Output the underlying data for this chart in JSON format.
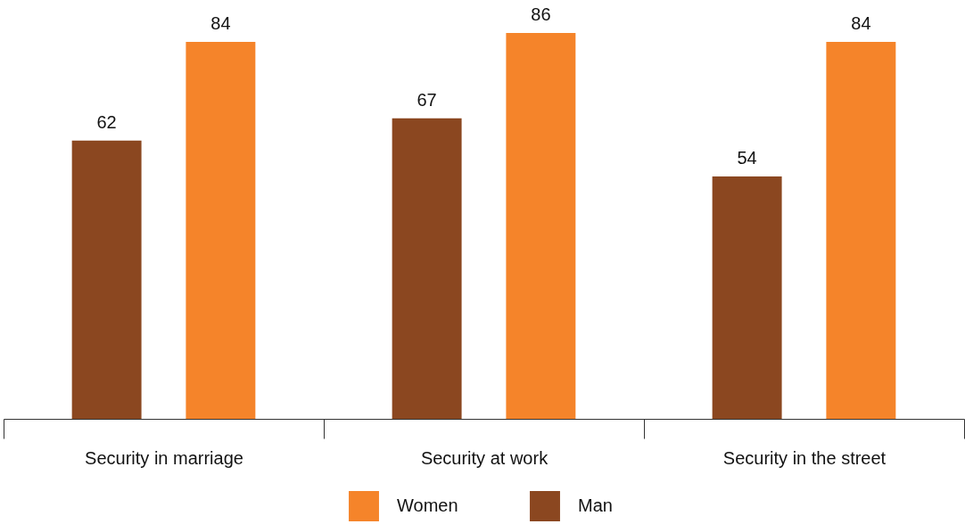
{
  "chart_data": {
    "type": "bar",
    "categories": [
      "Security in marriage",
      "Security at work",
      "Security in the street"
    ],
    "series": [
      {
        "name": "Man",
        "color": "#8b4720",
        "values": [
          62,
          67,
          54
        ]
      },
      {
        "name": "Women",
        "color": "#f5842a",
        "values": [
          84,
          86,
          84
        ]
      }
    ],
    "data_labels": true,
    "legend": "bottom",
    "grid": false
  }
}
